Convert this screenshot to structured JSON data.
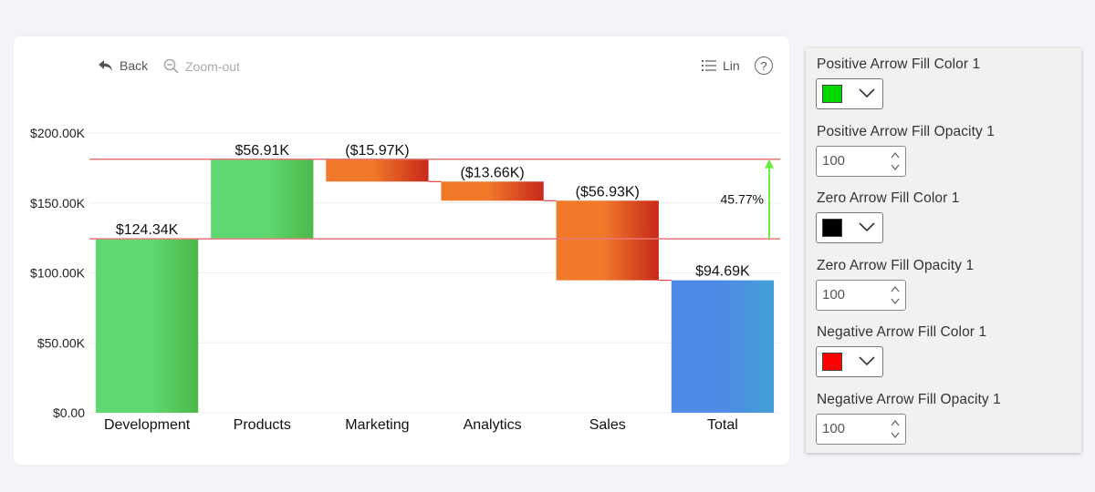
{
  "toolbar": {
    "back_label": "Back",
    "zoom_label": "Zoom-out",
    "lin_label": "Lin",
    "help_glyph": "?"
  },
  "chart_data": {
    "type": "waterfall",
    "categories": [
      "Development",
      "Products",
      "Marketing",
      "Analytics",
      "Sales",
      "Total"
    ],
    "values": [
      124.34,
      56.91,
      -15.97,
      -13.66,
      -56.93,
      94.69
    ],
    "kinds": [
      "start",
      "delta",
      "delta",
      "delta",
      "delta",
      "total"
    ],
    "data_labels": [
      "$124.34K",
      "$56.91K",
      "($15.97K)",
      "($13.66K)",
      "($56.93K)",
      "$94.69K"
    ],
    "y_ticks": [
      "$0.00",
      "$50.00K",
      "$100.00K",
      "$150.00K",
      "$200.00K"
    ],
    "y_tick_values": [
      0,
      50,
      100,
      150,
      200
    ],
    "ylim": [
      0,
      200
    ],
    "unit": "K",
    "grid": true,
    "reference_lines": [
      124.34,
      181.25
    ],
    "variance_arrow": {
      "from": 124.34,
      "to": 181.25,
      "label": "45.77%"
    },
    "colors": {
      "positive": [
        "#5ed870",
        "#4cb84a"
      ],
      "negative": [
        "#f07a2a",
        "#c8281a"
      ],
      "total": [
        "#4e8ae6",
        "#43a0d6"
      ],
      "reference_line": "#e87878",
      "connector": "#e02020",
      "arrow": "#66ee44",
      "grid": "#eeeeee"
    }
  },
  "panel": {
    "positive_color_label": "Positive Arrow Fill Color 1",
    "positive_color": "#00d600",
    "positive_opacity_label": "Positive Arrow Fill Opacity 1",
    "positive_opacity": "100",
    "zero_color_label": "Zero Arrow Fill Color 1",
    "zero_color": "#000000",
    "zero_opacity_label": "Zero Arrow Fill Opacity 1",
    "zero_opacity": "100",
    "negative_color_label": "Negative Arrow Fill Color 1",
    "negative_color": "#ff0000",
    "negative_opacity_label": "Negative Arrow Fill Opacity 1",
    "negative_opacity": "100"
  }
}
